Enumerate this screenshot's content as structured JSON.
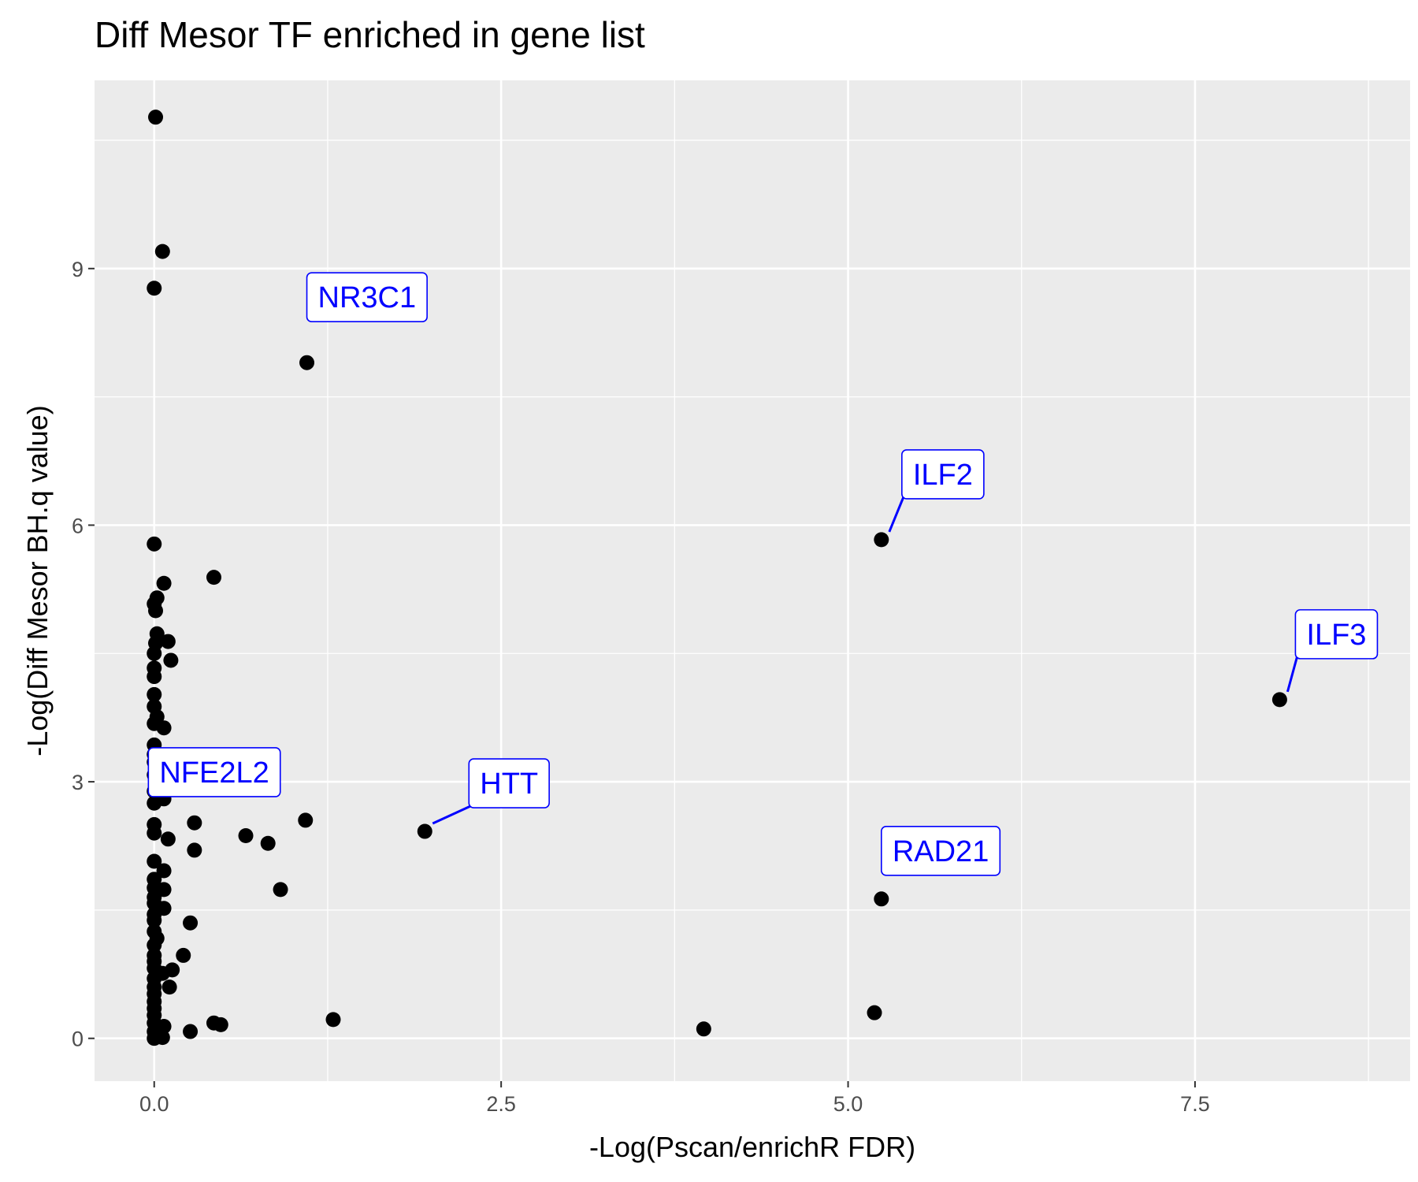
{
  "chart_data": {
    "type": "scatter",
    "title": "Diff Mesor TF enriched in gene list",
    "xlabel": "-Log(Pscan/enrichR FDR)",
    "ylabel": "-Log(Diff Mesor BH.q value)",
    "xlim": [
      -0.43,
      9.05
    ],
    "ylim": [
      -0.5,
      11.2
    ],
    "grid": true,
    "legend": "none",
    "x_ticks": [
      {
        "value": 0.0,
        "label": "0.0"
      },
      {
        "value": 2.5,
        "label": "2.5"
      },
      {
        "value": 5.0,
        "label": "5.0"
      },
      {
        "value": 7.5,
        "label": "7.5"
      }
    ],
    "y_ticks": [
      {
        "value": 0,
        "label": "0"
      },
      {
        "value": 3,
        "label": "3"
      },
      {
        "value": 6,
        "label": "6"
      },
      {
        "value": 9,
        "label": "9"
      }
    ],
    "colors": {
      "panel": "#ebebeb",
      "grid": "#ffffff",
      "point": "#000000",
      "label": "#0000ff"
    },
    "points": [
      {
        "x": 0.01,
        "y": 10.77
      },
      {
        "x": 0.06,
        "y": 9.2
      },
      {
        "x": 0.0,
        "y": 8.77
      },
      {
        "x": 1.1,
        "y": 7.9,
        "label": "NR3C1"
      },
      {
        "x": 5.24,
        "y": 5.83,
        "label": "ILF2"
      },
      {
        "x": 0.0,
        "y": 5.78
      },
      {
        "x": 0.43,
        "y": 5.39
      },
      {
        "x": 0.07,
        "y": 5.32
      },
      {
        "x": 0.02,
        "y": 5.15
      },
      {
        "x": 0.0,
        "y": 5.08
      },
      {
        "x": 0.01,
        "y": 5.0
      },
      {
        "x": 0.02,
        "y": 4.73
      },
      {
        "x": 0.1,
        "y": 4.64
      },
      {
        "x": 0.01,
        "y": 4.62
      },
      {
        "x": 0.0,
        "y": 4.5
      },
      {
        "x": 0.12,
        "y": 4.42
      },
      {
        "x": 0.0,
        "y": 4.33
      },
      {
        "x": 0.0,
        "y": 4.23
      },
      {
        "x": 8.11,
        "y": 3.96,
        "label": "ILF3"
      },
      {
        "x": 0.0,
        "y": 4.02
      },
      {
        "x": 0.0,
        "y": 3.88
      },
      {
        "x": 0.02,
        "y": 3.76
      },
      {
        "x": 0.0,
        "y": 3.68
      },
      {
        "x": 0.07,
        "y": 3.63
      },
      {
        "x": 0.0,
        "y": 3.43
      },
      {
        "x": 0.0,
        "y": 3.32
      },
      {
        "x": 0.07,
        "y": 3.28
      },
      {
        "x": 0.19,
        "y": 3.23
      },
      {
        "x": 0.0,
        "y": 3.23
      },
      {
        "x": 0.0,
        "y": 3.08
      },
      {
        "x": 0.06,
        "y": 3.03
      },
      {
        "x": 0.0,
        "y": 2.89
      },
      {
        "x": 0.07,
        "y": 2.8
      },
      {
        "x": 0.0,
        "y": 2.75
      },
      {
        "x": 1.09,
        "y": 2.55,
        "label": "NFE2L2"
      },
      {
        "x": 0.29,
        "y": 2.52
      },
      {
        "x": 0.0,
        "y": 2.5
      },
      {
        "x": 0.0,
        "y": 2.4
      },
      {
        "x": 1.95,
        "y": 2.42,
        "label": "HTT"
      },
      {
        "x": 0.66,
        "y": 2.37
      },
      {
        "x": 0.1,
        "y": 2.33
      },
      {
        "x": 0.82,
        "y": 2.28
      },
      {
        "x": 0.29,
        "y": 2.2
      },
      {
        "x": 0.0,
        "y": 2.07
      },
      {
        "x": 0.07,
        "y": 1.96
      },
      {
        "x": 0.0,
        "y": 1.86
      },
      {
        "x": 0.0,
        "y": 1.76
      },
      {
        "x": 0.07,
        "y": 1.74
      },
      {
        "x": 0.91,
        "y": 1.74
      },
      {
        "x": 0.0,
        "y": 1.65
      },
      {
        "x": 5.24,
        "y": 1.63,
        "label": "RAD21"
      },
      {
        "x": 0.0,
        "y": 1.58
      },
      {
        "x": 0.07,
        "y": 1.52
      },
      {
        "x": 0.0,
        "y": 1.45
      },
      {
        "x": 0.0,
        "y": 1.38
      },
      {
        "x": 0.26,
        "y": 1.35
      },
      {
        "x": 0.0,
        "y": 1.25
      },
      {
        "x": 0.02,
        "y": 1.17
      },
      {
        "x": 0.0,
        "y": 1.09
      },
      {
        "x": 0.21,
        "y": 0.97
      },
      {
        "x": 0.0,
        "y": 0.97
      },
      {
        "x": 0.0,
        "y": 0.9
      },
      {
        "x": 0.0,
        "y": 0.82
      },
      {
        "x": 0.13,
        "y": 0.8
      },
      {
        "x": 0.06,
        "y": 0.76
      },
      {
        "x": 0.0,
        "y": 0.7
      },
      {
        "x": 0.11,
        "y": 0.6
      },
      {
        "x": 0.0,
        "y": 0.6
      },
      {
        "x": 0.0,
        "y": 0.52
      },
      {
        "x": 0.0,
        "y": 0.43
      },
      {
        "x": 0.0,
        "y": 0.35
      },
      {
        "x": 5.19,
        "y": 0.3
      },
      {
        "x": 0.0,
        "y": 0.27
      },
      {
        "x": 1.29,
        "y": 0.22
      },
      {
        "x": 0.43,
        "y": 0.18
      },
      {
        "x": 0.48,
        "y": 0.16
      },
      {
        "x": 0.0,
        "y": 0.18
      },
      {
        "x": 0.07,
        "y": 0.14
      },
      {
        "x": 3.96,
        "y": 0.11
      },
      {
        "x": 0.26,
        "y": 0.08
      },
      {
        "x": 0.0,
        "y": 0.08
      },
      {
        "x": 0.03,
        "y": 0.02
      },
      {
        "x": 0.06,
        "y": 0.01
      },
      {
        "x": 0.0,
        "y": 0.0
      }
    ]
  }
}
